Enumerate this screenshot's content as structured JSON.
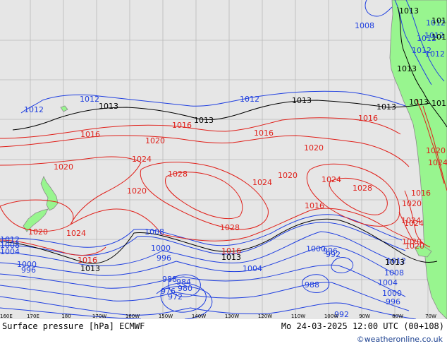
{
  "map": {
    "title": "Surface pressure [hPa] ECMWF",
    "valid_time": "Mo 24-03-2025 12:00 UTC (00+108)",
    "credit": "©weatheronline.co.uk",
    "ocean_color": "#e6e6e6",
    "land_color": "#98f58f",
    "coast_color": "#8a8a8a",
    "grid_color": "#b8b8b8",
    "colors": {
      "low": "#1f3fe0",
      "standard": "#000000",
      "high": "#e0201a"
    },
    "lon_ticks": [
      "160E",
      "170E",
      "180",
      "170W",
      "160W",
      "150W",
      "140W",
      "130W",
      "120W",
      "110W",
      "100W",
      "90W",
      "80W",
      "70W"
    ],
    "isobar_labels": [
      {
        "v": "1008",
        "cls": "low"
      },
      {
        "v": "1013",
        "cls": "standard"
      },
      {
        "v": "1012",
        "cls": "low"
      },
      {
        "v": "1012",
        "cls": "low"
      },
      {
        "v": "1012",
        "cls": "low"
      },
      {
        "v": "1013",
        "cls": "standard"
      },
      {
        "v": "1013",
        "cls": "standard"
      },
      {
        "v": "1013",
        "cls": "standard"
      },
      {
        "v": "1012",
        "cls": "low"
      },
      {
        "v": "1012",
        "cls": "low"
      },
      {
        "v": "1013",
        "cls": "standard"
      },
      {
        "v": "1013",
        "cls": "standard"
      },
      {
        "v": "1013",
        "cls": "standard"
      },
      {
        "v": "1013",
        "cls": "standard"
      },
      {
        "v": "1012",
        "cls": "low"
      },
      {
        "v": "1012",
        "cls": "low"
      },
      {
        "v": "1012",
        "cls": "low"
      },
      {
        "v": "1013",
        "cls": "standard"
      },
      {
        "v": "1013",
        "cls": "standard"
      },
      {
        "v": "1016",
        "cls": "high"
      },
      {
        "v": "1016",
        "cls": "high"
      },
      {
        "v": "1016",
        "cls": "high"
      },
      {
        "v": "1016",
        "cls": "high"
      },
      {
        "v": "1020",
        "cls": "high"
      },
      {
        "v": "1020",
        "cls": "high"
      },
      {
        "v": "1020",
        "cls": "high"
      },
      {
        "v": "1024",
        "cls": "high"
      },
      {
        "v": "1028",
        "cls": "high"
      },
      {
        "v": "1024",
        "cls": "high"
      },
      {
        "v": "1020",
        "cls": "high"
      },
      {
        "v": "1024",
        "cls": "high"
      },
      {
        "v": "1028",
        "cls": "high"
      },
      {
        "v": "1020",
        "cls": "high"
      },
      {
        "v": "1020",
        "cls": "high"
      },
      {
        "v": "1024",
        "cls": "high"
      },
      {
        "v": "1028",
        "cls": "high"
      },
      {
        "v": "1016",
        "cls": "high"
      },
      {
        "v": "1020",
        "cls": "high"
      },
      {
        "v": "1024",
        "cls": "high"
      },
      {
        "v": "1020",
        "cls": "high"
      },
      {
        "v": "1016",
        "cls": "high"
      },
      {
        "v": "1008",
        "cls": "low"
      },
      {
        "v": "1012",
        "cls": "low"
      },
      {
        "v": "1008",
        "cls": "low"
      },
      {
        "v": "1004",
        "cls": "low"
      },
      {
        "v": "1000",
        "cls": "low"
      },
      {
        "v": "996",
        "cls": "low"
      },
      {
        "v": "1013",
        "cls": "standard"
      },
      {
        "v": "1016",
        "cls": "high"
      },
      {
        "v": "1000",
        "cls": "low"
      },
      {
        "v": "996",
        "cls": "low"
      },
      {
        "v": "1013",
        "cls": "standard"
      },
      {
        "v": "1012",
        "cls": "low"
      },
      {
        "v": "1004",
        "cls": "low"
      },
      {
        "v": "988",
        "cls": "low"
      },
      {
        "v": "984",
        "cls": "low"
      },
      {
        "v": "980",
        "cls": "low"
      },
      {
        "v": "976",
        "cls": "low"
      },
      {
        "v": "972",
        "cls": "low"
      },
      {
        "v": "1000",
        "cls": "low"
      },
      {
        "v": "996",
        "cls": "low"
      },
      {
        "v": "992",
        "cls": "low"
      },
      {
        "v": "988",
        "cls": "low"
      },
      {
        "v": "1013",
        "cls": "standard"
      },
      {
        "v": "1008",
        "cls": "low"
      },
      {
        "v": "1004",
        "cls": "low"
      },
      {
        "v": "1000",
        "cls": "low"
      },
      {
        "v": "996",
        "cls": "low"
      },
      {
        "v": "992",
        "cls": "low"
      },
      {
        "v": "1024",
        "cls": "high"
      },
      {
        "v": "1020",
        "cls": "high"
      },
      {
        "v": "1016",
        "cls": "high"
      },
      {
        "v": "1020",
        "cls": "high"
      },
      {
        "v": "1024",
        "cls": "high"
      }
    ]
  }
}
